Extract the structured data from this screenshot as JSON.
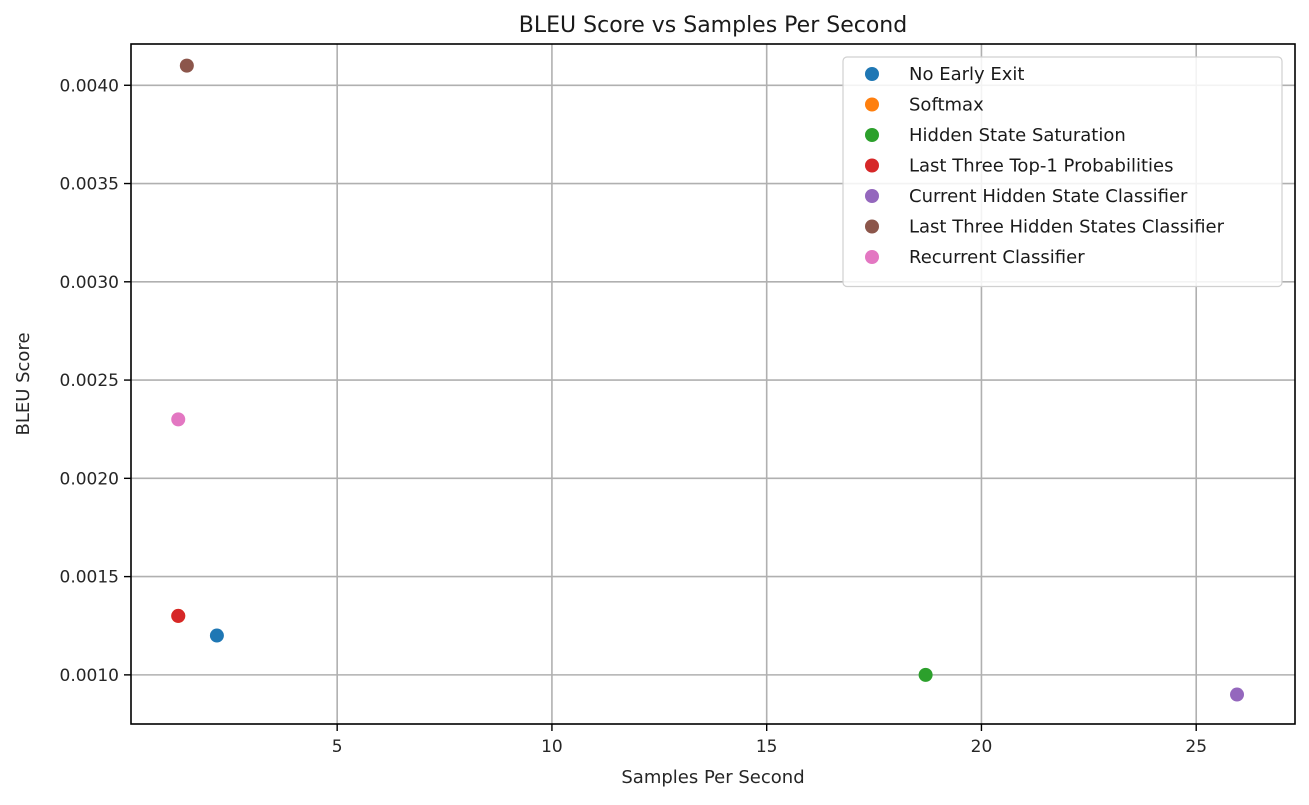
{
  "chart_data": {
    "type": "scatter",
    "title": "BLEU Score vs Samples Per Second",
    "xlabel": "Samples Per Second",
    "ylabel": "BLEU Score",
    "xlim": [
      0.2,
      27.3
    ],
    "ylim": [
      0.00075,
      0.00421
    ],
    "xticks": [
      5,
      10,
      15,
      20,
      25
    ],
    "yticks": [
      0.001,
      0.0015,
      0.002,
      0.0025,
      0.003,
      0.0035,
      0.004
    ],
    "ytick_labels": [
      "0.0010",
      "0.0015",
      "0.0020",
      "0.0025",
      "0.0030",
      "0.0035",
      "0.0040"
    ],
    "grid": true,
    "legend_position": "top-right",
    "series": [
      {
        "name": "No Early Exit",
        "color": "#1f77b4",
        "points": [
          {
            "x": 2.2,
            "y": 0.0012
          }
        ]
      },
      {
        "name": "Softmax",
        "color": "#ff7f0e",
        "points": [
          {
            "x": 1.3,
            "y": 0.0013
          }
        ]
      },
      {
        "name": "Hidden State Saturation",
        "color": "#2ca02c",
        "points": [
          {
            "x": 18.7,
            "y": 0.001
          }
        ]
      },
      {
        "name": "Last Three Top-1 Probabilities",
        "color": "#d62728",
        "points": [
          {
            "x": 1.3,
            "y": 0.0013
          }
        ]
      },
      {
        "name": "Current Hidden State Classifier",
        "color": "#9467bd",
        "points": [
          {
            "x": 25.95,
            "y": 0.0009
          }
        ]
      },
      {
        "name": "Last Three Hidden States Classifier",
        "color": "#8c564b",
        "points": [
          {
            "x": 1.5,
            "y": 0.0041
          }
        ]
      },
      {
        "name": "Recurrent Classifier",
        "color": "#e377c2",
        "points": [
          {
            "x": 1.3,
            "y": 0.0023
          }
        ]
      }
    ]
  }
}
